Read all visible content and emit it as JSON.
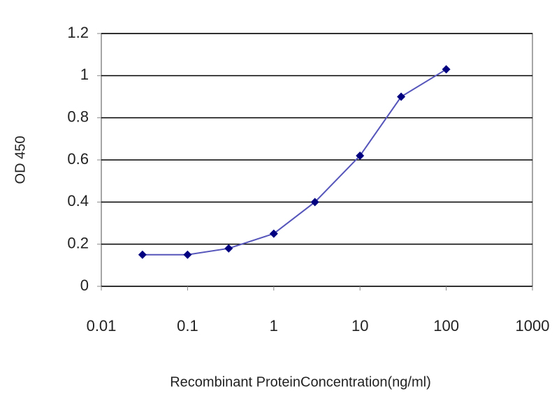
{
  "chart_data": {
    "type": "line",
    "x_label": "Recombinant ProteinConcentration(ng/ml)",
    "y_label": "OD 450",
    "x": [
      0.03,
      0.1,
      0.3,
      1,
      3,
      10,
      30,
      100
    ],
    "series": [
      {
        "color": "#000080",
        "values": [
          0.15,
          0.15,
          0.18,
          0.25,
          0.4,
          0.62,
          0.9,
          1.03
        ]
      }
    ],
    "xscale": "log",
    "xlim": [
      0.01,
      1000
    ],
    "xticks": [
      0.01,
      0.1,
      1,
      10,
      100,
      1000
    ],
    "ylim": [
      0,
      1.2
    ],
    "yticks": [
      0,
      0.2,
      0.4,
      0.6,
      0.8,
      1,
      1.2
    ],
    "grid": true
  }
}
